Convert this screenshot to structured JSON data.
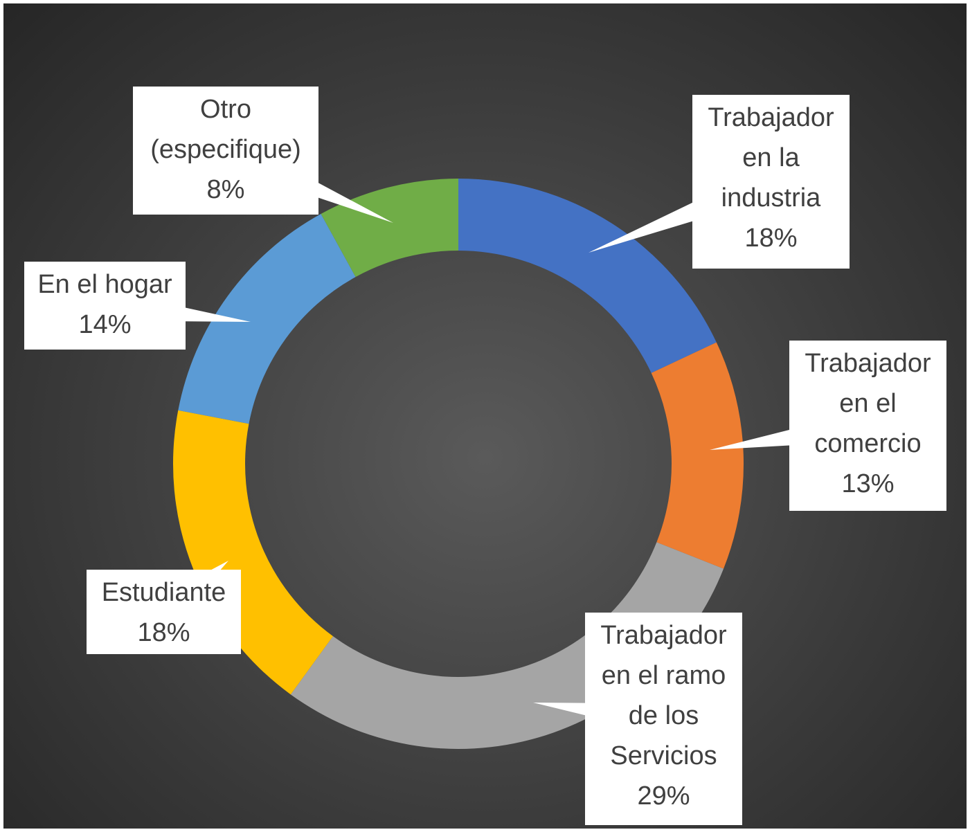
{
  "chart_data": {
    "type": "donut",
    "categories": [
      "Trabajador en la industria",
      "Trabajador en el comercio",
      "Trabajador en el ramo de los Servicios",
      "Estudiante",
      "En el hogar",
      "Otro (especifique)"
    ],
    "values": [
      18,
      13,
      29,
      18,
      14,
      8
    ],
    "value_labels": [
      "18%",
      "13%",
      "29%",
      "18%",
      "14%",
      "8%"
    ],
    "colors": [
      "#4472c4",
      "#ed7d31",
      "#a5a5a5",
      "#ffc000",
      "#5b9bd5",
      "#70ad47"
    ]
  }
}
